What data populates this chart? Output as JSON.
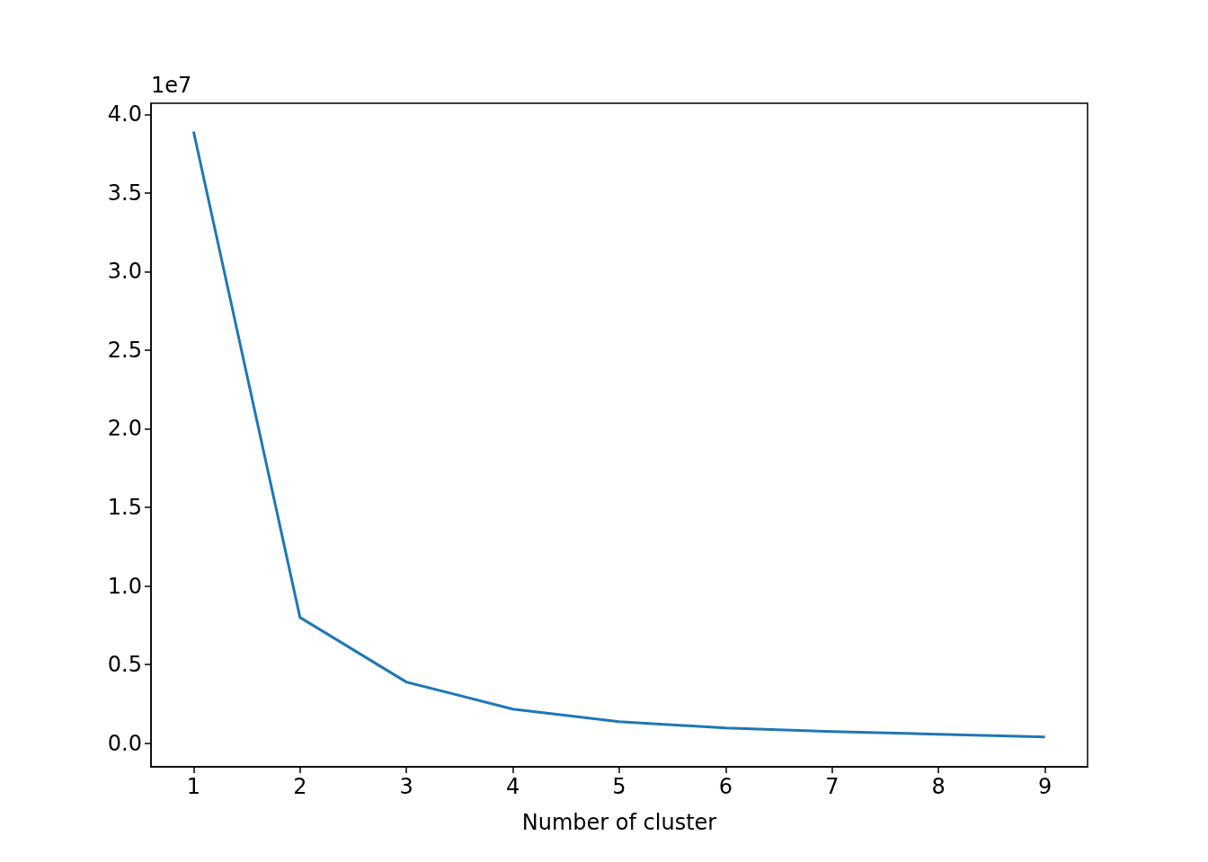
{
  "chart_data": {
    "type": "line",
    "xlabel": "Number of cluster",
    "annotations": [
      "1e7"
    ],
    "x": [
      1,
      2,
      3,
      4,
      5,
      6,
      7,
      8,
      9
    ],
    "series": [
      {
        "color": "#1f77b4",
        "values": [
          3.89,
          0.8,
          0.389,
          0.217,
          0.137,
          0.097,
          0.074,
          0.057,
          0.04
        ]
      }
    ],
    "xlim": [
      0.6,
      9.4
    ],
    "xticks": [
      1,
      2,
      3,
      4,
      5,
      6,
      7,
      8,
      9
    ],
    "ylim": [
      -0.15,
      4.07
    ],
    "yticks": [
      {
        "value": 0,
        "label": "0.0"
      },
      {
        "value": 0.5,
        "label": "0.5"
      },
      {
        "value": 1,
        "label": "1.0"
      },
      {
        "value": 1.5,
        "label": "1.5"
      },
      {
        "value": 2,
        "label": "2.0"
      },
      {
        "value": 2.5,
        "label": "2.5"
      },
      {
        "value": 3,
        "label": "3.0"
      },
      {
        "value": 3.5,
        "label": "3.5"
      },
      {
        "value": 4,
        "label": "4.0"
      }
    ],
    "grid": false,
    "marker": "none",
    "line_style": "solid"
  }
}
